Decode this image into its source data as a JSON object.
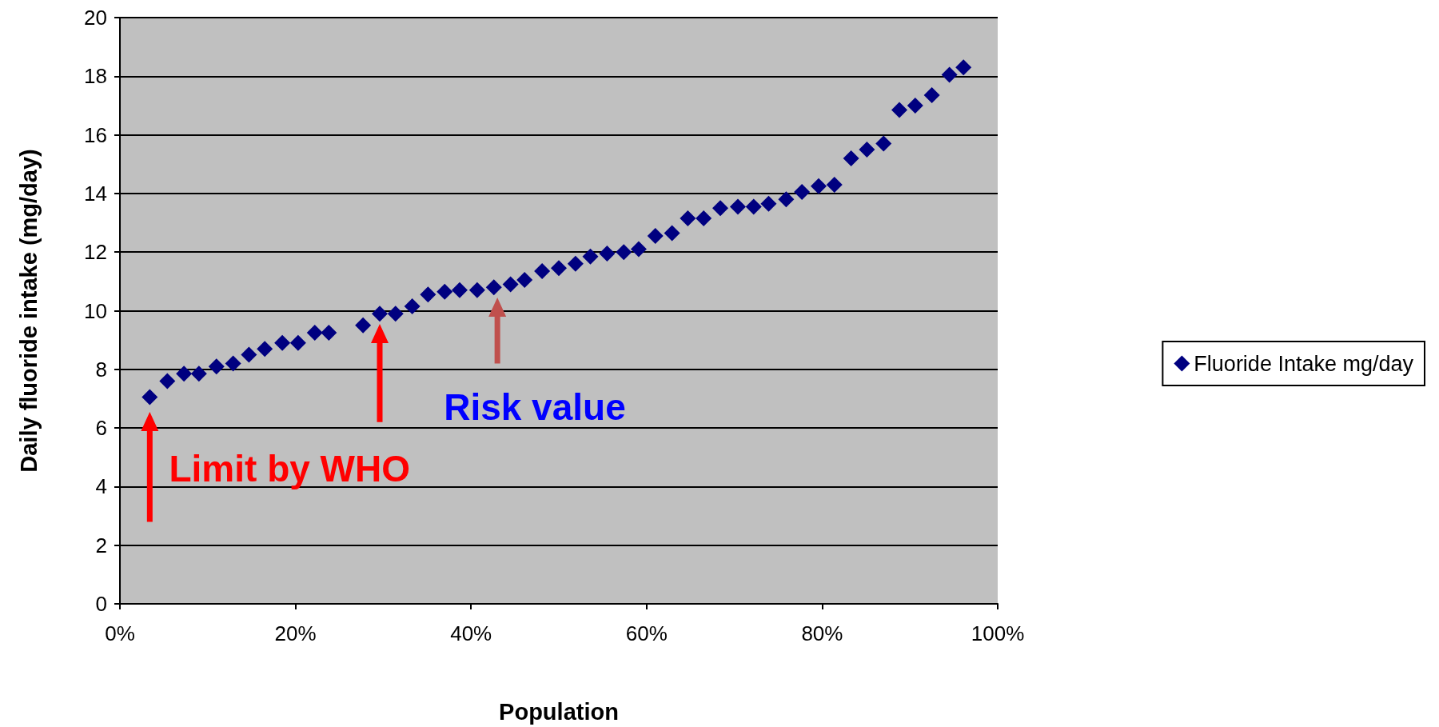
{
  "chart_data": {
    "type": "scatter",
    "xlabel": "Population",
    "ylabel": "Daily fluoride intake (mg/day)",
    "annotations": [
      "Limit by WHO",
      "Risk value"
    ],
    "x": [
      3.4,
      5.4,
      7.3,
      9.0,
      11.0,
      12.9,
      14.7,
      16.5,
      18.5,
      20.3,
      22.2,
      23.8,
      27.7,
      29.6,
      31.4,
      33.3,
      35.1,
      37.0,
      38.7,
      40.7,
      42.6,
      44.5,
      46.1,
      48.1,
      50.0,
      51.9,
      53.6,
      55.5,
      57.4,
      59.1,
      61.0,
      62.9,
      64.7,
      66.5,
      68.4,
      70.4,
      72.2,
      73.9,
      75.9,
      77.7,
      79.6,
      81.4,
      83.3,
      85.1,
      87.0,
      88.8,
      90.6,
      92.5,
      94.5,
      96.1
    ],
    "series": [
      {
        "name": "Fluoride Intake mg/day",
        "color": "#000080",
        "values": [
          7.05,
          7.6,
          7.85,
          7.85,
          8.1,
          8.2,
          8.5,
          8.7,
          8.9,
          8.9,
          9.25,
          9.25,
          9.5,
          9.9,
          9.9,
          10.15,
          10.55,
          10.65,
          10.7,
          10.7,
          10.8,
          10.9,
          11.05,
          11.35,
          11.45,
          11.6,
          11.85,
          11.95,
          12.0,
          12.1,
          12.55,
          12.65,
          13.15,
          13.15,
          13.5,
          13.55,
          13.55,
          13.65,
          13.8,
          14.05,
          14.25,
          14.3,
          15.2,
          15.5,
          15.7,
          16.85,
          17.0,
          17.35,
          18.05,
          18.3
        ]
      }
    ],
    "xlim": [
      0,
      100
    ],
    "xticks": [
      {
        "value": 0,
        "label": "0%"
      },
      {
        "value": 20,
        "label": "20%"
      },
      {
        "value": 40,
        "label": "40%"
      },
      {
        "value": 60,
        "label": "60%"
      },
      {
        "value": 80,
        "label": "80%"
      },
      {
        "value": 100,
        "label": "100%"
      }
    ],
    "ylim": [
      0,
      20
    ],
    "yticks": [
      0,
      2,
      4,
      6,
      8,
      10,
      12,
      14,
      16,
      18,
      20
    ],
    "grid": "y",
    "legend": "right",
    "marker": "diamond"
  }
}
